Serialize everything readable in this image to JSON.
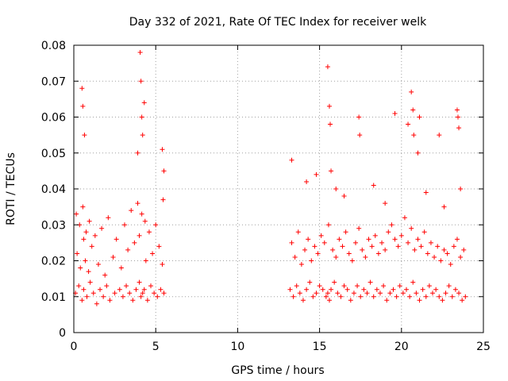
{
  "chart_data": {
    "type": "scatter",
    "title": "Day 332 of 2021, Rate Of TEC Index for receiver welk",
    "xlabel": "GPS time / hours",
    "ylabel": "ROTI / TECUs",
    "xlim": [
      0,
      25
    ],
    "ylim": [
      0,
      0.08
    ],
    "x_ticks": [
      0,
      5,
      10,
      15,
      20,
      25
    ],
    "x_tick_labels": [
      "0",
      "5",
      "10",
      "15",
      "20",
      "25"
    ],
    "y_ticks": [
      0,
      0.01,
      0.02,
      0.03,
      0.04,
      0.05,
      0.06,
      0.07,
      0.08
    ],
    "y_tick_labels": [
      "0",
      "0.01",
      "0.02",
      "0.03",
      "0.04",
      "0.05",
      "0.06",
      "0.07",
      "0.08"
    ],
    "grid": true,
    "marker": "+",
    "color": "#ff0000",
    "series": [
      {
        "name": "ROTI",
        "x": [
          0.1,
          0.3,
          0.5,
          0.6,
          0.8,
          1.0,
          1.2,
          1.4,
          1.6,
          1.8,
          2.0,
          2.2,
          2.5,
          2.8,
          3.0,
          3.2,
          3.4,
          3.6,
          3.8,
          4.0,
          4.1,
          4.2,
          4.3,
          4.5,
          4.7,
          4.9,
          5.1,
          5.3,
          5.5,
          0.2,
          0.4,
          0.6,
          0.7,
          0.9,
          1.1,
          1.5,
          1.9,
          2.4,
          2.9,
          3.3,
          3.7,
          4.0,
          4.4,
          4.8,
          5.2,
          5.4,
          0.15,
          0.35,
          0.55,
          0.75,
          0.95,
          1.3,
          1.7,
          2.1,
          2.6,
          3.1,
          3.5,
          3.9,
          4.15,
          4.35,
          4.6,
          5.0,
          5.45,
          0.5,
          0.55,
          0.65,
          3.9,
          4.05,
          4.1,
          4.15,
          4.2,
          4.3,
          5.4,
          5.5,
          13.2,
          13.4,
          13.6,
          13.8,
          14.0,
          14.2,
          14.4,
          14.6,
          14.8,
          15.0,
          15.2,
          15.4,
          15.5,
          15.6,
          15.7,
          15.9,
          16.1,
          16.3,
          16.5,
          16.7,
          16.9,
          17.1,
          17.3,
          17.5,
          17.7,
          17.9,
          18.1,
          18.3,
          18.5,
          18.7,
          18.9,
          19.1,
          19.3,
          19.5,
          19.7,
          19.9,
          20.1,
          20.3,
          20.5,
          20.7,
          20.9,
          21.1,
          21.3,
          21.5,
          21.7,
          21.9,
          22.1,
          22.3,
          22.5,
          22.7,
          22.9,
          23.1,
          23.3,
          23.5,
          23.7,
          23.9,
          13.3,
          13.5,
          13.7,
          13.9,
          14.1,
          14.3,
          14.5,
          14.7,
          14.9,
          15.1,
          15.3,
          15.55,
          15.8,
          16.0,
          16.2,
          16.4,
          16.6,
          16.8,
          17.0,
          17.2,
          17.4,
          17.6,
          17.8,
          18.0,
          18.2,
          18.4,
          18.6,
          18.8,
          19.0,
          19.2,
          19.4,
          19.6,
          19.8,
          20.0,
          20.2,
          20.4,
          20.6,
          20.8,
          21.0,
          21.2,
          21.4,
          21.6,
          21.8,
          22.0,
          22.2,
          22.4,
          22.6,
          22.8,
          23.0,
          23.2,
          23.4,
          23.6,
          23.8,
          15.5,
          15.6,
          15.65,
          17.4,
          17.45,
          19.6,
          20.4,
          20.6,
          20.7,
          20.75,
          21.0,
          21.1,
          22.3,
          23.4,
          23.45,
          23.5,
          15.7,
          16.0,
          14.2,
          16.5,
          18.3,
          19.0,
          21.5,
          22.6,
          23.6,
          13.3,
          14.8
        ],
        "y": [
          0.011,
          0.013,
          0.009,
          0.012,
          0.01,
          0.014,
          0.011,
          0.008,
          0.012,
          0.01,
          0.013,
          0.009,
          0.011,
          0.012,
          0.01,
          0.013,
          0.011,
          0.009,
          0.012,
          0.014,
          0.01,
          0.011,
          0.012,
          0.009,
          0.013,
          0.011,
          0.01,
          0.012,
          0.011,
          0.022,
          0.018,
          0.026,
          0.02,
          0.017,
          0.024,
          0.019,
          0.016,
          0.021,
          0.018,
          0.023,
          0.025,
          0.027,
          0.02,
          0.022,
          0.024,
          0.019,
          0.033,
          0.03,
          0.035,
          0.028,
          0.031,
          0.027,
          0.029,
          0.032,
          0.026,
          0.03,
          0.034,
          0.036,
          0.033,
          0.031,
          0.028,
          0.03,
          0.037,
          0.068,
          0.063,
          0.055,
          0.05,
          0.078,
          0.07,
          0.06,
          0.055,
          0.064,
          0.051,
          0.045,
          0.012,
          0.01,
          0.013,
          0.011,
          0.009,
          0.012,
          0.014,
          0.01,
          0.011,
          0.013,
          0.012,
          0.01,
          0.011,
          0.009,
          0.012,
          0.014,
          0.011,
          0.01,
          0.013,
          0.012,
          0.009,
          0.011,
          0.013,
          0.01,
          0.012,
          0.011,
          0.014,
          0.01,
          0.012,
          0.011,
          0.013,
          0.009,
          0.011,
          0.012,
          0.01,
          0.013,
          0.011,
          0.012,
          0.01,
          0.014,
          0.011,
          0.009,
          0.012,
          0.01,
          0.013,
          0.011,
          0.012,
          0.01,
          0.009,
          0.011,
          0.013,
          0.01,
          0.012,
          0.011,
          0.009,
          0.01,
          0.025,
          0.021,
          0.028,
          0.019,
          0.023,
          0.026,
          0.02,
          0.024,
          0.022,
          0.027,
          0.025,
          0.03,
          0.023,
          0.021,
          0.026,
          0.024,
          0.028,
          0.022,
          0.02,
          0.025,
          0.029,
          0.023,
          0.021,
          0.026,
          0.024,
          0.027,
          0.022,
          0.025,
          0.023,
          0.028,
          0.03,
          0.026,
          0.024,
          0.027,
          0.032,
          0.025,
          0.029,
          0.023,
          0.026,
          0.024,
          0.028,
          0.022,
          0.025,
          0.021,
          0.024,
          0.02,
          0.023,
          0.022,
          0.019,
          0.024,
          0.026,
          0.021,
          0.023,
          0.074,
          0.063,
          0.058,
          0.06,
          0.055,
          0.061,
          0.058,
          0.067,
          0.062,
          0.055,
          0.05,
          0.06,
          0.055,
          0.062,
          0.06,
          0.057,
          0.045,
          0.04,
          0.042,
          0.038,
          0.041,
          0.036,
          0.039,
          0.035,
          0.04,
          0.048,
          0.044
        ]
      }
    ]
  }
}
